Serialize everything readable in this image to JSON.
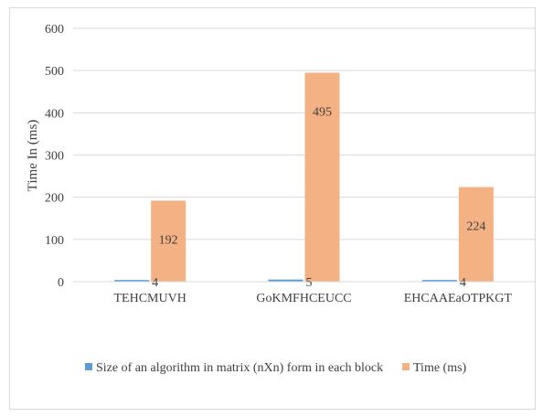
{
  "chart_data": {
    "type": "bar",
    "title": "",
    "xlabel": "",
    "ylabel": "Time In (ms)",
    "ylim": [
      0,
      600
    ],
    "yticks": [
      0,
      100,
      200,
      300,
      400,
      500,
      600
    ],
    "categories": [
      "TEHCMUVH",
      "GoKMFHCEUCC",
      "EHCAAEaOTPKGT"
    ],
    "series": [
      {
        "name": "Size of an algorithm in matrix (nXn) form in each block",
        "values": [
          4,
          5,
          4
        ],
        "color": "#5b9bd5"
      },
      {
        "name": "Time (ms)",
        "values": [
          192,
          495,
          224
        ],
        "color": "#f4b183"
      }
    ],
    "grid": true,
    "legend_position": "bottom"
  }
}
